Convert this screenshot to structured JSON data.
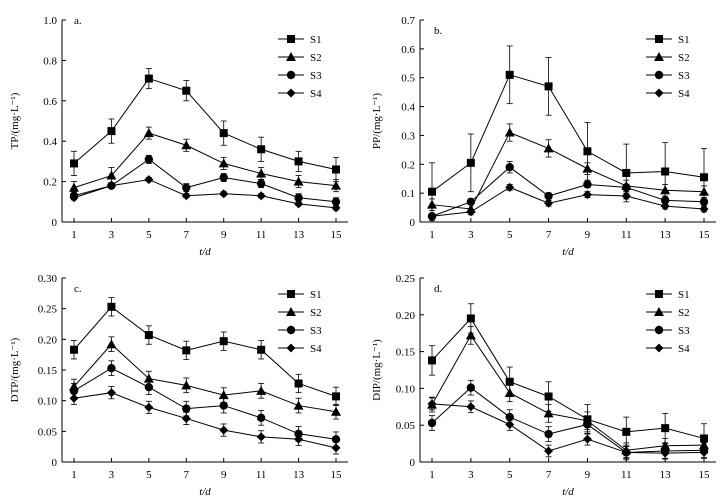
{
  "chart_data": [
    {
      "type": "line",
      "panel": "a.",
      "ylabel": "TP/(mg·L⁻¹)",
      "xlabel": "t/d",
      "ylim": [
        0,
        1.0
      ],
      "yticks": [
        0,
        0.2,
        0.4,
        0.6,
        0.8,
        1.0
      ],
      "ytick_labels": [
        "0",
        "0.2",
        "0.4",
        "0.6",
        "0.8",
        "1.0"
      ],
      "x": [
        1,
        3,
        5,
        7,
        9,
        11,
        13,
        15
      ],
      "x_tick_labels": [
        "1",
        "3",
        "5",
        "7",
        "9",
        "11",
        "13",
        "15"
      ],
      "legend_position": "top-right",
      "series": [
        {
          "name": "S1",
          "marker": "square",
          "values": [
            0.29,
            0.45,
            0.71,
            0.65,
            0.44,
            0.36,
            0.3,
            0.26
          ],
          "errors": [
            0.06,
            0.06,
            0.05,
            0.05,
            0.06,
            0.06,
            0.05,
            0.06
          ]
        },
        {
          "name": "S2",
          "marker": "triangle",
          "values": [
            0.17,
            0.23,
            0.44,
            0.38,
            0.29,
            0.24,
            0.2,
            0.18
          ],
          "errors": [
            0.03,
            0.04,
            0.03,
            0.03,
            0.03,
            0.03,
            0.03,
            0.03
          ]
        },
        {
          "name": "S3",
          "marker": "circle",
          "values": [
            0.13,
            0.18,
            0.31,
            0.17,
            0.22,
            0.19,
            0.12,
            0.1
          ],
          "errors": [
            0.02,
            0.01,
            0.02,
            0.02,
            0.02,
            0.02,
            0.02,
            0.02
          ]
        },
        {
          "name": "S4",
          "marker": "diamond",
          "values": [
            0.12,
            0.18,
            0.21,
            0.13,
            0.14,
            0.13,
            0.09,
            0.07
          ],
          "errors": [
            0.01,
            0.01,
            0.01,
            0.01,
            0.01,
            0.01,
            0.01,
            0.01
          ]
        }
      ]
    },
    {
      "type": "line",
      "panel": "b.",
      "ylabel": "PP/(mg·L⁻¹)",
      "xlabel": "t/d",
      "ylim": [
        0,
        0.7
      ],
      "yticks": [
        0,
        0.1,
        0.2,
        0.3,
        0.4,
        0.5,
        0.6,
        0.7
      ],
      "ytick_labels": [
        "0",
        "0.1",
        "0.2",
        "0.3",
        "0.4",
        "0.5",
        "0.6",
        "0.7"
      ],
      "x": [
        1,
        3,
        5,
        7,
        9,
        11,
        13,
        15
      ],
      "x_tick_labels": [
        "1",
        "3",
        "5",
        "7",
        "9",
        "11",
        "13",
        "15"
      ],
      "legend_position": "top-right",
      "series": [
        {
          "name": "S1",
          "marker": "square",
          "values": [
            0.105,
            0.205,
            0.51,
            0.47,
            0.245,
            0.17,
            0.175,
            0.155
          ],
          "errors": [
            0.1,
            0.1,
            0.1,
            0.1,
            0.1,
            0.1,
            0.1,
            0.1
          ]
        },
        {
          "name": "S2",
          "marker": "triangle",
          "values": [
            0.06,
            0.045,
            0.31,
            0.255,
            0.185,
            0.125,
            0.11,
            0.105
          ],
          "errors": [
            0.02,
            0.02,
            0.03,
            0.03,
            0.02,
            0.02,
            0.02,
            0.02
          ]
        },
        {
          "name": "S3",
          "marker": "circle",
          "values": [
            0.02,
            0.07,
            0.19,
            0.09,
            0.13,
            0.12,
            0.075,
            0.07
          ],
          "errors": [
            0.01,
            0.01,
            0.02,
            0.01,
            0.01,
            0.01,
            0.01,
            0.01
          ]
        },
        {
          "name": "S4",
          "marker": "diamond",
          "values": [
            0.02,
            0.035,
            0.12,
            0.065,
            0.095,
            0.09,
            0.055,
            0.045
          ],
          "errors": [
            0.005,
            0.005,
            0.01,
            0.01,
            0.01,
            0.01,
            0.01,
            0.01
          ]
        }
      ]
    },
    {
      "type": "line",
      "panel": "c.",
      "ylabel": "DTP/(mg·L⁻¹)",
      "xlabel": "t/d",
      "ylim": [
        0,
        0.3
      ],
      "yticks": [
        0,
        0.05,
        0.1,
        0.15,
        0.2,
        0.25,
        0.3
      ],
      "ytick_labels": [
        "0",
        "0.05",
        "0.10",
        "0.15",
        "0.20",
        "0.25",
        "0.30"
      ],
      "x": [
        1,
        3,
        5,
        7,
        9,
        11,
        13,
        15
      ],
      "x_tick_labels": [
        "1",
        "3",
        "5",
        "7",
        "9",
        "11",
        "13",
        "15"
      ],
      "legend_position": "top-right",
      "series": [
        {
          "name": "S1",
          "marker": "square",
          "values": [
            0.183,
            0.253,
            0.207,
            0.182,
            0.197,
            0.183,
            0.128,
            0.107
          ],
          "errors": [
            0.015,
            0.015,
            0.015,
            0.015,
            0.015,
            0.015,
            0.015,
            0.015
          ]
        },
        {
          "name": "S2",
          "marker": "triangle",
          "values": [
            0.123,
            0.192,
            0.136,
            0.125,
            0.109,
            0.116,
            0.092,
            0.082
          ],
          "errors": [
            0.012,
            0.012,
            0.012,
            0.012,
            0.012,
            0.012,
            0.012,
            0.012
          ]
        },
        {
          "name": "S3",
          "marker": "circle",
          "values": [
            0.116,
            0.153,
            0.122,
            0.087,
            0.092,
            0.072,
            0.046,
            0.037
          ],
          "errors": [
            0.012,
            0.012,
            0.012,
            0.012,
            0.012,
            0.012,
            0.012,
            0.012
          ]
        },
        {
          "name": "S4",
          "marker": "diamond",
          "values": [
            0.104,
            0.113,
            0.089,
            0.071,
            0.052,
            0.041,
            0.037,
            0.023
          ],
          "errors": [
            0.01,
            0.01,
            0.01,
            0.01,
            0.01,
            0.01,
            0.01,
            0.01
          ]
        }
      ]
    },
    {
      "type": "line",
      "panel": "d.",
      "ylabel": "DIP/(mg·L⁻¹)",
      "xlabel": "t/d",
      "ylim": [
        0,
        0.25
      ],
      "yticks": [
        0,
        0.05,
        0.1,
        0.15,
        0.2,
        0.25
      ],
      "ytick_labels": [
        "0",
        "0.05",
        "0.10",
        "0.15",
        "0.20",
        "0.25"
      ],
      "x": [
        1,
        3,
        5,
        7,
        9,
        11,
        13,
        15
      ],
      "x_tick_labels": [
        "1",
        "3",
        "5",
        "7",
        "9",
        "11",
        "13",
        "15"
      ],
      "legend_position": "top-right",
      "series": [
        {
          "name": "S1",
          "marker": "square",
          "values": [
            0.138,
            0.195,
            0.109,
            0.089,
            0.058,
            0.041,
            0.046,
            0.032
          ],
          "errors": [
            0.02,
            0.02,
            0.02,
            0.02,
            0.02,
            0.02,
            0.02,
            0.02
          ]
        },
        {
          "name": "S2",
          "marker": "triangle",
          "values": [
            0.078,
            0.172,
            0.094,
            0.066,
            0.056,
            0.016,
            0.022,
            0.023
          ],
          "errors": [
            0.01,
            0.012,
            0.012,
            0.012,
            0.012,
            0.01,
            0.01,
            0.01
          ]
        },
        {
          "name": "S3",
          "marker": "circle",
          "values": [
            0.053,
            0.101,
            0.061,
            0.038,
            0.051,
            0.013,
            0.015,
            0.016
          ],
          "errors": [
            0.01,
            0.01,
            0.01,
            0.01,
            0.01,
            0.01,
            0.01,
            0.01
          ]
        },
        {
          "name": "S4",
          "marker": "diamond",
          "values": [
            0.079,
            0.075,
            0.051,
            0.015,
            0.031,
            0.013,
            0.012,
            0.013
          ],
          "errors": [
            0.008,
            0.008,
            0.008,
            0.008,
            0.008,
            0.008,
            0.008,
            0.008
          ]
        }
      ]
    }
  ]
}
